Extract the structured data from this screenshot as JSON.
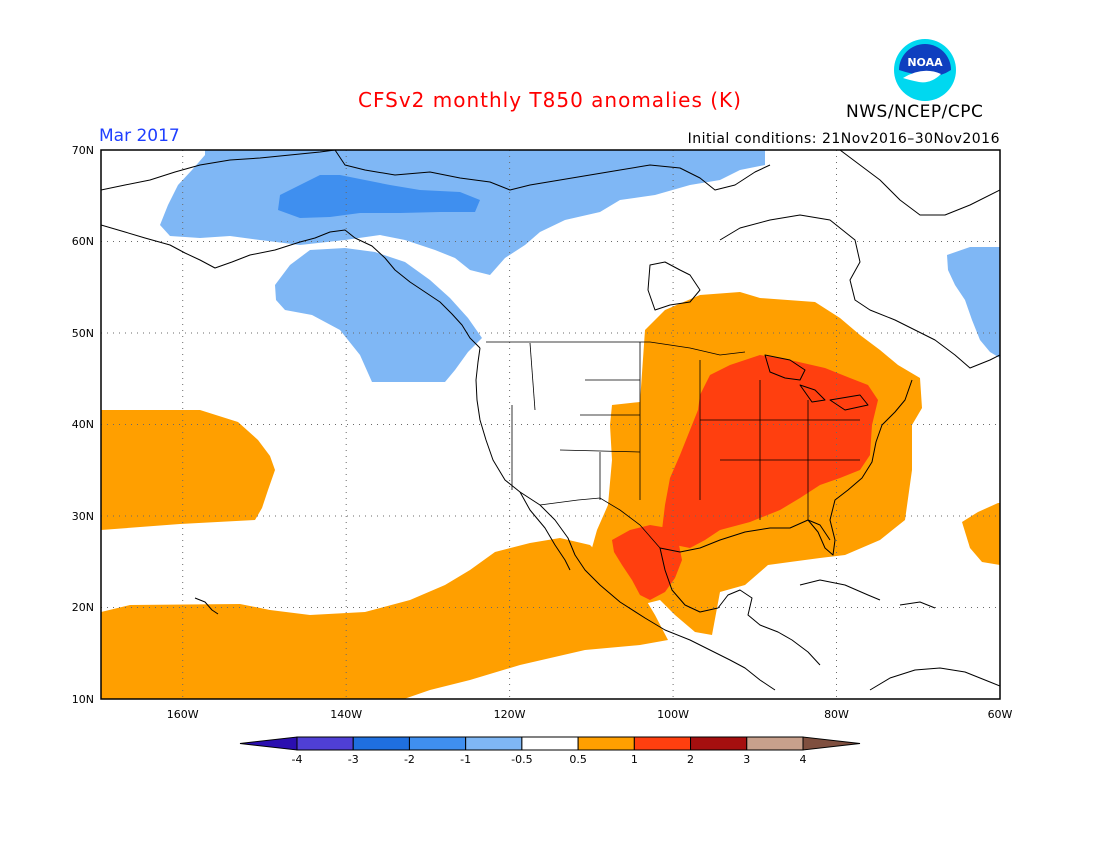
{
  "header": {
    "title": "CFSv2 monthly T850 anomalies (K)",
    "month": "Mar 2017",
    "initial_conditions": "Initial conditions: 21Nov2016–30Nov2016",
    "agency": "NWS/NCEP/CPC",
    "logo_text": "NOAA",
    "logo_icon": "noaa-logo-icon"
  },
  "map": {
    "projection": "cylindrical-equidistant",
    "lon_range": [
      -170,
      -60
    ],
    "lat_range": [
      10,
      70
    ],
    "lat_labels": [
      "70N",
      "60N",
      "50N",
      "40N",
      "30N",
      "20N",
      "10N"
    ],
    "lon_labels": [
      "160W",
      "140W",
      "120W",
      "100W",
      "80W",
      "60W"
    ],
    "grid": "dotted",
    "anomaly_regions": [
      {
        "name": "alaska-cool",
        "category": "-1 to -0.5",
        "color": "#7fb7f5"
      },
      {
        "name": "north-alaska-coast-cool",
        "category": "-2 to -1",
        "color": "#3f8fef"
      },
      {
        "name": "british-columbia-cool",
        "category": "-1 to -0.5",
        "color": "#7fb7f5"
      },
      {
        "name": "labrador-cool",
        "category": "-1 to -0.5",
        "color": "#7fb7f5"
      },
      {
        "name": "central-east-us-warm",
        "category": "0.5 to 1",
        "color": "#ff9f00"
      },
      {
        "name": "eastern-us-warm-core",
        "category": "1 to 2",
        "color": "#ff3f0f"
      },
      {
        "name": "mexico-warm-core",
        "category": "1 to 2",
        "color": "#ff3f0f"
      },
      {
        "name": "central-pacific-warm",
        "category": "0.5 to 1",
        "color": "#ff9f00"
      },
      {
        "name": "tropical-pacific-warm",
        "category": "0.5 to 1",
        "color": "#ff9f00"
      },
      {
        "name": "atlantic-warm",
        "category": "0.5 to 1",
        "color": "#ff9f00"
      }
    ]
  },
  "colorbar": {
    "labels": [
      "-4",
      "-3",
      "-2",
      "-1",
      "-0.5",
      "0.5",
      "1",
      "2",
      "3",
      "4"
    ],
    "colors": [
      "#2b0fb0",
      "#4f3fd5",
      "#1f6fdf",
      "#3f8fef",
      "#7fb7f5",
      "#ffffff",
      "#ff9f00",
      "#ff3f0f",
      "#a50f0f",
      "#c8a08c",
      "#7f4f3f"
    ]
  }
}
